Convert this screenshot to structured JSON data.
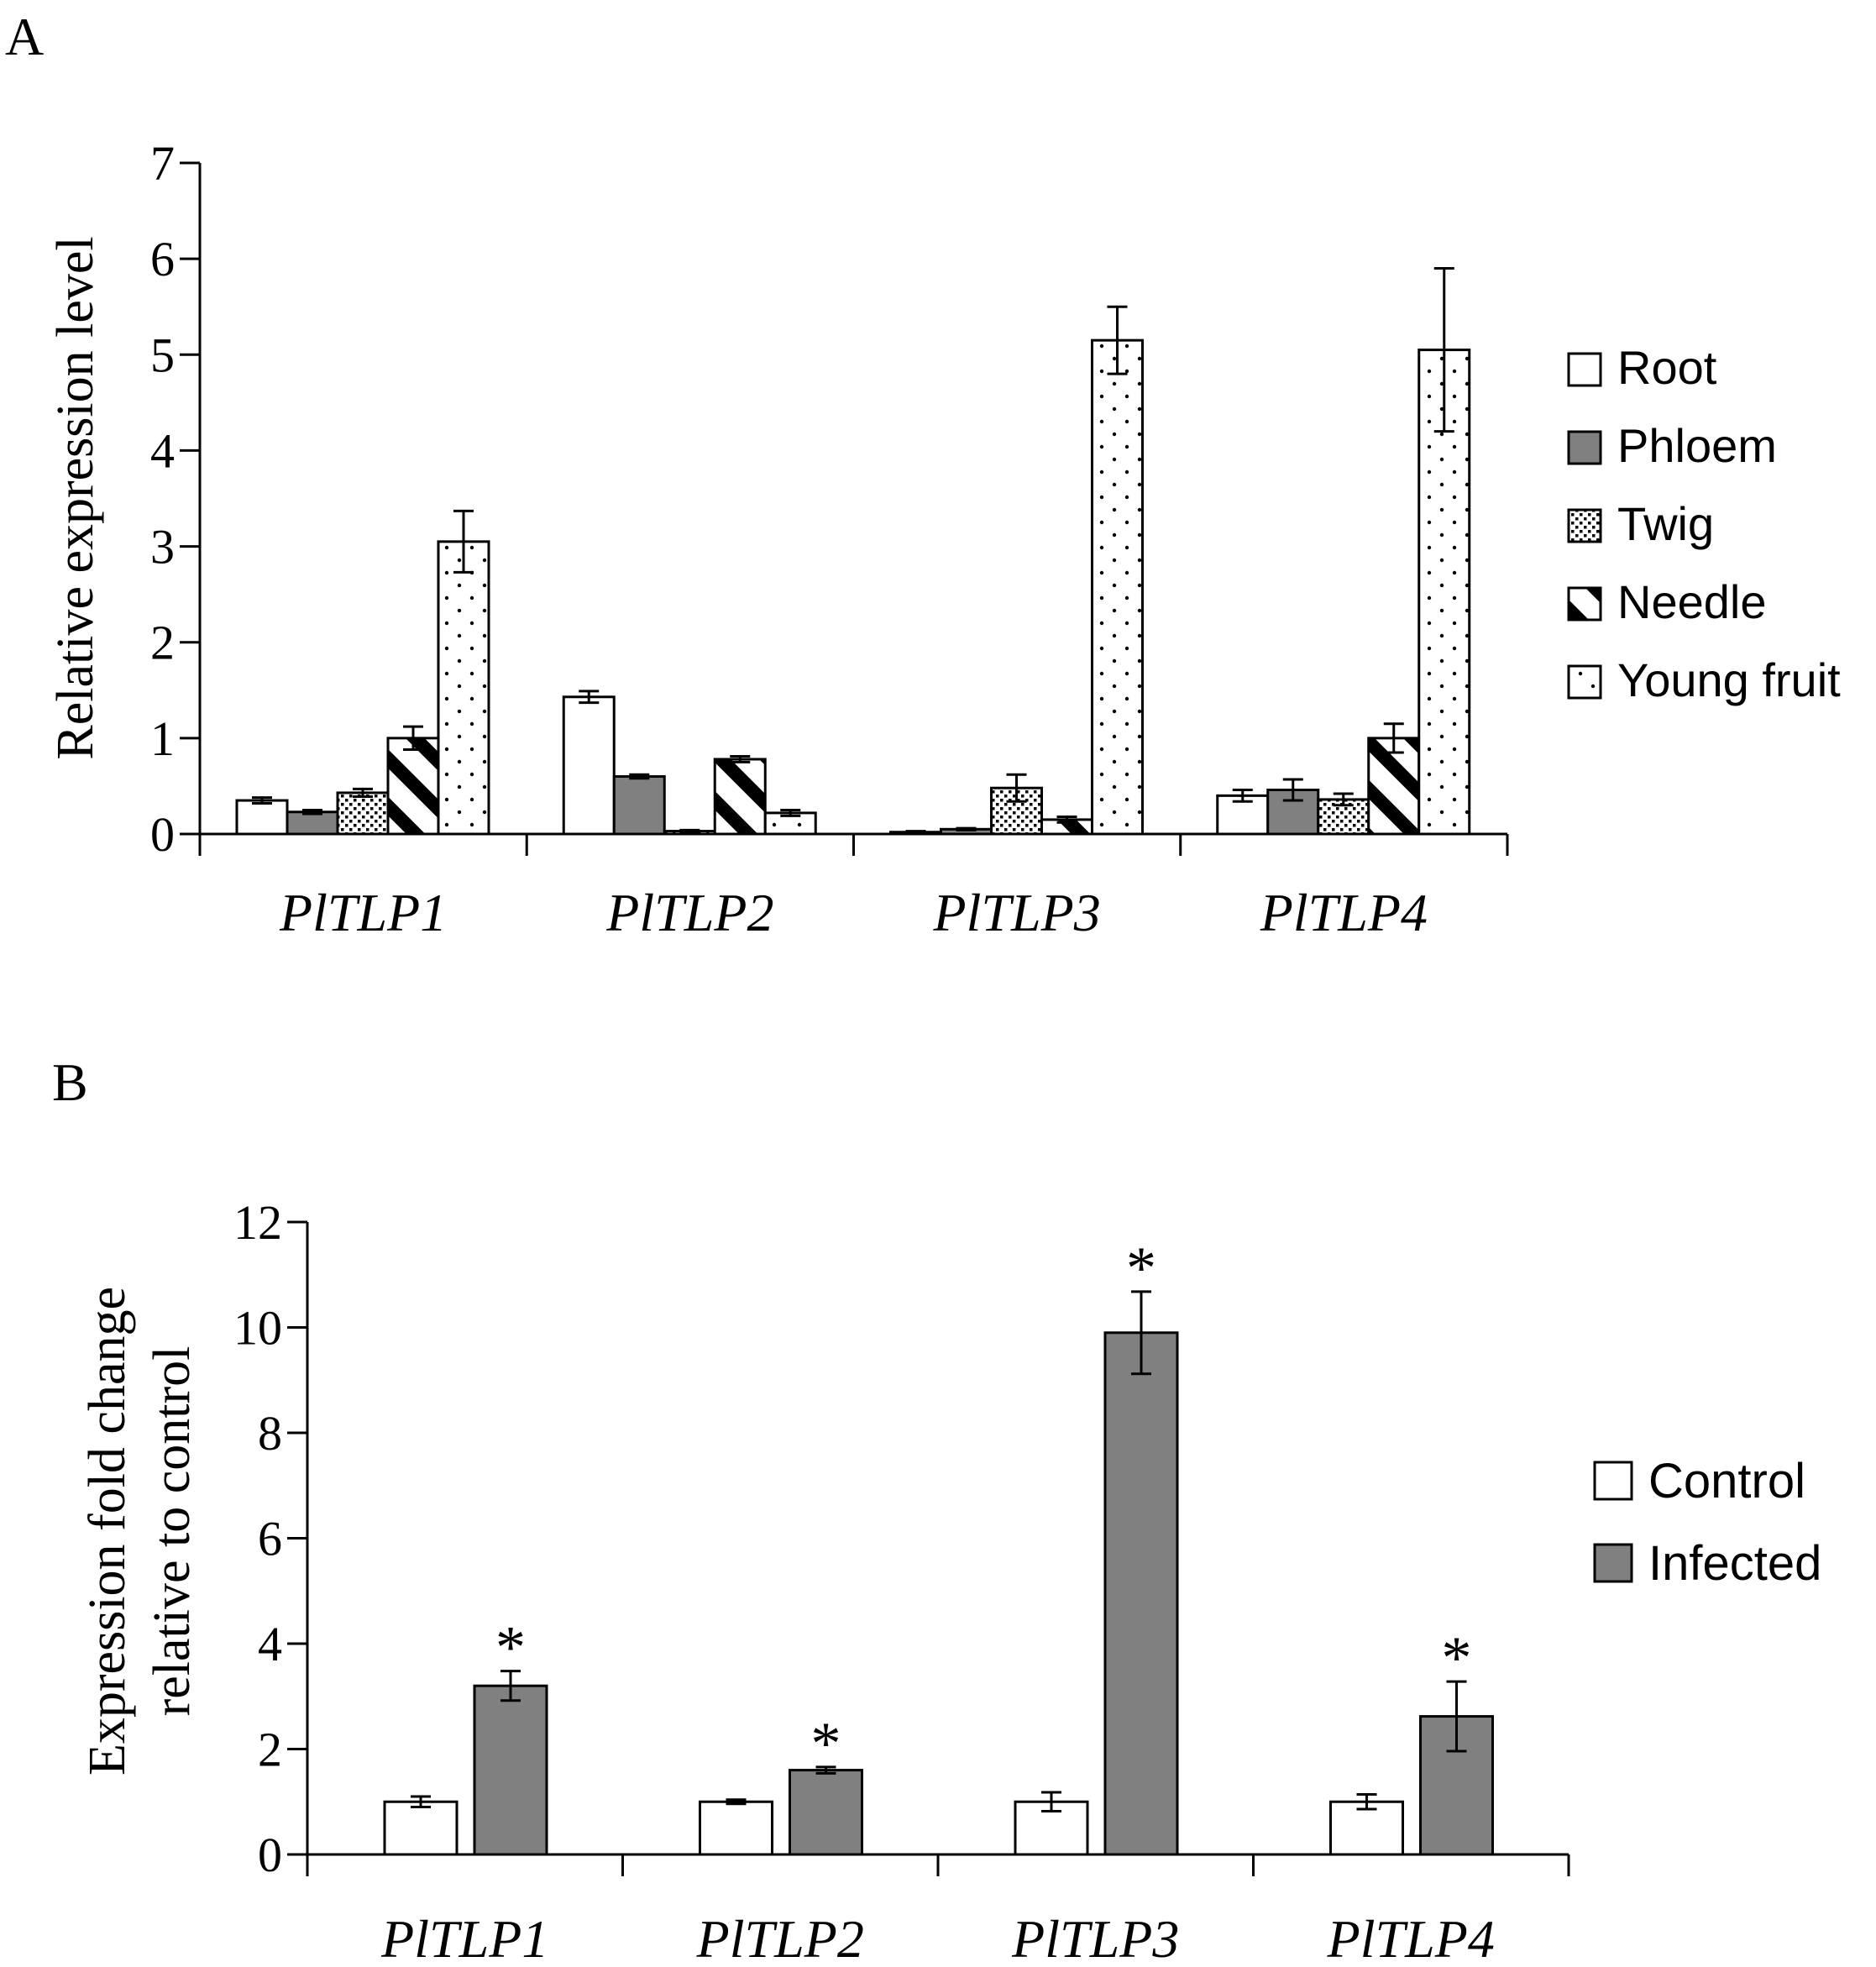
{
  "panels": {
    "a_label": "A",
    "b_label": "B"
  },
  "chart_data": [
    {
      "type": "bar",
      "panel": "A",
      "ylabel": "Relative expression level",
      "xlabel": "",
      "ylim": [
        0,
        7
      ],
      "yticks": [
        "0",
        "1",
        "2",
        "3",
        "4",
        "5",
        "6",
        "7"
      ],
      "categories": [
        "PlTLP1",
        "PlTLP2",
        "PlTLP3",
        "PlTLP4"
      ],
      "legend_position": "right",
      "series": [
        {
          "name": "Root",
          "pattern": "white",
          "values": [
            0.35,
            1.43,
            0.02,
            0.4
          ],
          "errors": [
            0.03,
            0.06,
            0.01,
            0.06
          ]
        },
        {
          "name": "Phloem",
          "pattern": "gray",
          "values": [
            0.23,
            0.6,
            0.05,
            0.46
          ],
          "errors": [
            0.02,
            0.02,
            0.01,
            0.11
          ]
        },
        {
          "name": "Twig",
          "pattern": "dots-dense",
          "values": [
            0.43,
            0.03,
            0.48,
            0.36
          ],
          "errors": [
            0.04,
            0.01,
            0.14,
            0.06
          ]
        },
        {
          "name": "Needle",
          "pattern": "stripes",
          "values": [
            1.0,
            0.78,
            0.15,
            1.0
          ],
          "errors": [
            0.12,
            0.03,
            0.03,
            0.15
          ]
        },
        {
          "name": "Young fruit",
          "pattern": "dots-sparse",
          "values": [
            3.05,
            0.22,
            5.15,
            5.05
          ],
          "errors": [
            0.32,
            0.03,
            0.35,
            0.85
          ]
        }
      ]
    },
    {
      "type": "bar",
      "panel": "B",
      "ylabel_line1": "Expression fold change",
      "ylabel_line2": "relative to control",
      "xlabel": "",
      "ylim": [
        0,
        12
      ],
      "yticks": [
        "0",
        "2",
        "4",
        "6",
        "8",
        "10",
        "12"
      ],
      "categories": [
        "PlTLP1",
        "PlTLP2",
        "PlTLP3",
        "PlTLP4"
      ],
      "legend_position": "right",
      "significance_marker": "*",
      "series": [
        {
          "name": "Control",
          "pattern": "white",
          "values": [
            1.0,
            1.0,
            1.0,
            1.0
          ],
          "errors": [
            0.1,
            0.04,
            0.18,
            0.14
          ],
          "significant": [
            false,
            false,
            false,
            false
          ]
        },
        {
          "name": "Infected",
          "pattern": "gray",
          "values": [
            3.2,
            1.6,
            9.9,
            2.62
          ],
          "errors": [
            0.28,
            0.06,
            0.78,
            0.66
          ],
          "significant": [
            true,
            true,
            true,
            true
          ]
        }
      ]
    }
  ]
}
